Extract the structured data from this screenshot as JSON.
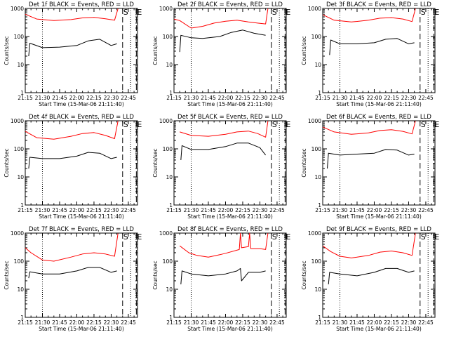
{
  "figure": {
    "background": "#ffffff",
    "panels_grid": "3x3"
  },
  "chart_data": [
    {
      "type": "line",
      "title": "Det 1f BLACK = Events, RED = LLD",
      "xlabel": "Start Time (15-Mar-06 21:11:40)",
      "ylabel": "Counts/sec",
      "xticks": [
        "21:15",
        "21:30",
        "21:45",
        "22:00",
        "22:15",
        "22:30",
        "22:45"
      ],
      "yticks": [
        "1",
        "10",
        "100",
        "1000"
      ],
      "yscale": "log",
      "ylim": [
        1,
        1000
      ],
      "xlim_min": [
        15,
        113
      ],
      "markers": [
        {
          "label": "",
          "t": 30,
          "style": "dotted"
        },
        {
          "label": "S",
          "t": 100,
          "style": "dashed"
        },
        {
          "label": "",
          "t": 107,
          "style": "dotted"
        },
        {
          "label": "E",
          "t": 112,
          "style": "dashed"
        }
      ],
      "series": [
        {
          "color": "#ff0000",
          "t": [
            15,
            25,
            40,
            55,
            65,
            75,
            85,
            93,
            96
          ],
          "values": [
            620,
            420,
            370,
            400,
            460,
            480,
            430,
            380,
            980
          ]
        },
        {
          "color": "#000000",
          "t": [
            18,
            19,
            30,
            45,
            60,
            70,
            80,
            90,
            95
          ],
          "values": [
            20,
            58,
            40,
            42,
            48,
            70,
            80,
            48,
            55
          ]
        }
      ]
    },
    {
      "type": "line",
      "title": "Det 2f BLACK = Events, RED = LLD",
      "xlabel": "Start Time (15-Mar-06 21:11:40)",
      "ylabel": "Counts/sec",
      "xticks": [
        "21:15",
        "21:30",
        "21:45",
        "22:00",
        "22:15",
        "22:30",
        "22:45"
      ],
      "yticks": [
        "1",
        "10",
        "100",
        "1000"
      ],
      "yscale": "log",
      "ylim": [
        1,
        1000
      ],
      "xlim_min": [
        15,
        113
      ],
      "markers": [
        {
          "label": "",
          "t": 30,
          "style": "dotted"
        },
        {
          "label": "S",
          "t": 100,
          "style": "dashed"
        },
        {
          "label": "",
          "t": 107,
          "style": "dotted"
        },
        {
          "label": "E",
          "t": 112,
          "style": "dashed"
        }
      ],
      "series": [
        {
          "color": "#ff0000",
          "t": [
            15,
            20,
            30,
            40,
            50,
            60,
            70,
            80,
            88,
            95,
            97
          ],
          "values": [
            420,
            370,
            200,
            230,
            300,
            350,
            380,
            330,
            300,
            280,
            990
          ]
        },
        {
          "color": "#000000",
          "t": [
            20,
            21,
            30,
            40,
            55,
            65,
            75,
            85,
            95
          ],
          "values": [
            28,
            110,
            90,
            85,
            100,
            140,
            170,
            130,
            110
          ]
        }
      ]
    },
    {
      "type": "line",
      "title": "Det 3f BLACK = Events, RED = LLD",
      "xlabel": "Start Time (15-Mar-06 21:11:40)",
      "ylabel": "Counts/sec",
      "xticks": [
        "21:15",
        "21:30",
        "21:45",
        "22:00",
        "22:15",
        "22:30",
        "22:45"
      ],
      "yticks": [
        "1",
        "10",
        "100",
        "1000"
      ],
      "yscale": "log",
      "ylim": [
        1,
        1000
      ],
      "xlim_min": [
        15,
        113
      ],
      "markers": [
        {
          "label": "",
          "t": 30,
          "style": "dotted"
        },
        {
          "label": "S",
          "t": 100,
          "style": "dashed"
        },
        {
          "label": "",
          "t": 107,
          "style": "dotted"
        },
        {
          "label": "E",
          "t": 112,
          "style": "dashed"
        }
      ],
      "series": [
        {
          "color": "#ff0000",
          "t": [
            15,
            25,
            40,
            55,
            65,
            75,
            85,
            93,
            96
          ],
          "values": [
            600,
            380,
            330,
            380,
            450,
            470,
            420,
            340,
            990
          ]
        },
        {
          "color": "#000000",
          "t": [
            21,
            22,
            30,
            45,
            60,
            70,
            80,
            90,
            95
          ],
          "values": [
            22,
            75,
            55,
            55,
            60,
            80,
            85,
            55,
            60
          ]
        }
      ]
    },
    {
      "type": "line",
      "title": "Det 4f BLACK = Events, RED = LLD",
      "xlabel": "Start Time (15-Mar-06 21:11:40)",
      "ylabel": "Counts/sec",
      "xticks": [
        "21:15",
        "21:30",
        "21:45",
        "22:00",
        "22:15",
        "22:30",
        "22:45"
      ],
      "yticks": [
        "1",
        "10",
        "100",
        "1000"
      ],
      "yscale": "log",
      "ylim": [
        1,
        1000
      ],
      "xlim_min": [
        15,
        113
      ],
      "markers": [
        {
          "label": "",
          "t": 30,
          "style": "dotted"
        },
        {
          "label": "S",
          "t": 100,
          "style": "dashed"
        },
        {
          "label": "",
          "t": 107,
          "style": "dotted"
        },
        {
          "label": "E",
          "t": 112,
          "style": "dashed"
        }
      ],
      "series": [
        {
          "color": "#ff0000",
          "t": [
            15,
            25,
            40,
            55,
            65,
            75,
            85,
            93,
            96
          ],
          "values": [
            420,
            250,
            220,
            280,
            350,
            380,
            300,
            230,
            980
          ]
        },
        {
          "color": "#000000",
          "t": [
            18,
            19,
            30,
            45,
            60,
            70,
            80,
            90,
            95
          ],
          "values": [
            20,
            50,
            45,
            45,
            55,
            75,
            70,
            45,
            50
          ]
        }
      ]
    },
    {
      "type": "line",
      "title": "Det 5f BLACK = Events, RED = LLD",
      "xlabel": "Start Time (15-Mar-06 21:11:40)",
      "ylabel": "Counts/sec",
      "xticks": [
        "21:15",
        "21:30",
        "21:45",
        "22:00",
        "22:15",
        "22:30",
        "22:45"
      ],
      "yticks": [
        "1",
        "10",
        "100",
        "1000"
      ],
      "yscale": "log",
      "ylim": [
        1,
        1000
      ],
      "xlim_min": [
        15,
        113
      ],
      "markers": [
        {
          "label": "",
          "t": 30,
          "style": "dotted"
        },
        {
          "label": "S",
          "t": 100,
          "style": "dashed"
        },
        {
          "label": "",
          "t": 107,
          "style": "dotted"
        },
        {
          "label": "E",
          "t": 112,
          "style": "dashed"
        }
      ],
      "series": [
        {
          "color": "#ff0000",
          "t": [
            20,
            30,
            45,
            60,
            70,
            80,
            88,
            95,
            97
          ],
          "values": [
            400,
            300,
            280,
            330,
            400,
            430,
            350,
            260,
            980
          ]
        },
        {
          "color": "#000000",
          "t": [
            21,
            22,
            30,
            45,
            60,
            70,
            80,
            90,
            95
          ],
          "values": [
            40,
            130,
            95,
            95,
            120,
            160,
            160,
            110,
            60
          ]
        }
      ]
    },
    {
      "type": "line",
      "title": "Det 6f BLACK = Events, RED = LLD",
      "xlabel": "Start Time (15-Mar-06 21:11:40)",
      "ylabel": "Counts/sec",
      "xticks": [
        "21:15",
        "21:30",
        "21:45",
        "22:00",
        "22:15",
        "22:30",
        "22:45"
      ],
      "yticks": [
        "1",
        "10",
        "100",
        "1000"
      ],
      "yscale": "log",
      "ylim": [
        1,
        1000
      ],
      "xlim_min": [
        15,
        113
      ],
      "markers": [
        {
          "label": "",
          "t": 30,
          "style": "dotted"
        },
        {
          "label": "S",
          "t": 100,
          "style": "dashed"
        },
        {
          "label": "",
          "t": 107,
          "style": "dotted"
        },
        {
          "label": "E",
          "t": 112,
          "style": "dashed"
        }
      ],
      "series": [
        {
          "color": "#ff0000",
          "t": [
            15,
            25,
            40,
            55,
            65,
            75,
            85,
            93,
            96
          ],
          "values": [
            600,
            400,
            330,
            370,
            450,
            480,
            420,
            340,
            990
          ]
        },
        {
          "color": "#000000",
          "t": [
            19,
            20,
            30,
            45,
            60,
            70,
            80,
            90,
            95
          ],
          "values": [
            20,
            70,
            60,
            65,
            70,
            95,
            90,
            60,
            65
          ]
        }
      ]
    },
    {
      "type": "line",
      "title": "Det 7f BLACK = Events, RED = LLD",
      "xlabel": "Start Time (15-Mar-06 21:11:40)",
      "ylabel": "Counts/sec",
      "xticks": [
        "21:15",
        "21:30",
        "21:45",
        "22:00",
        "22:15",
        "22:30",
        "22:45"
      ],
      "yticks": [
        "1",
        "10",
        "100",
        "1000"
      ],
      "yscale": "log",
      "ylim": [
        1,
        1000
      ],
      "xlim_min": [
        15,
        113
      ],
      "markers": [
        {
          "label": "",
          "t": 30,
          "style": "dotted"
        },
        {
          "label": "S",
          "t": 100,
          "style": "dashed"
        },
        {
          "label": "",
          "t": 107,
          "style": "dotted"
        },
        {
          "label": "E",
          "t": 112,
          "style": "dashed"
        }
      ],
      "series": [
        {
          "color": "#ff0000",
          "t": [
            15,
            20,
            30,
            40,
            55,
            65,
            75,
            85,
            93,
            96
          ],
          "values": [
            300,
            200,
            110,
            100,
            140,
            180,
            200,
            180,
            150,
            980
          ]
        },
        {
          "color": "#000000",
          "t": [
            18,
            19,
            30,
            45,
            60,
            70,
            80,
            90,
            95
          ],
          "values": [
            25,
            42,
            35,
            35,
            45,
            60,
            60,
            40,
            45
          ]
        }
      ]
    },
    {
      "type": "line",
      "title": "Det 8f BLACK = Events, RED = LLD",
      "xlabel": "Start Time (15-Mar-06 21:11:40)",
      "ylabel": "Counts/sec",
      "xticks": [
        "21:15",
        "21:30",
        "21:45",
        "22:00",
        "22:15",
        "22:30",
        "22:45"
      ],
      "yticks": [
        "1",
        "10",
        "100",
        "1000"
      ],
      "yscale": "log",
      "ylim": [
        1,
        1000
      ],
      "xlim_min": [
        15,
        113
      ],
      "markers": [
        {
          "label": "",
          "t": 30,
          "style": "dotted"
        },
        {
          "label": "S",
          "t": 100,
          "style": "dashed"
        },
        {
          "label": "",
          "t": 107,
          "style": "dotted"
        },
        {
          "label": "E",
          "t": 112,
          "style": "dashed"
        }
      ],
      "series": [
        {
          "color": "#ff0000",
          "t": [
            20,
            28,
            35,
            45,
            55,
            60,
            72,
            73,
            74,
            80,
            81,
            82,
            90,
            95,
            97
          ],
          "values": [
            350,
            200,
            160,
            140,
            170,
            190,
            260,
            990,
            300,
            330,
            990,
            280,
            280,
            260,
            990
          ]
        },
        {
          "color": "#000000",
          "t": [
            21,
            22,
            30,
            45,
            60,
            70,
            73,
            74,
            80,
            90,
            95
          ],
          "values": [
            15,
            45,
            35,
            30,
            35,
            45,
            55,
            20,
            40,
            40,
            45
          ]
        }
      ]
    },
    {
      "type": "line",
      "title": "Det 9f BLACK = Events, RED = LLD",
      "xlabel": "Start Time (15-Mar-06 21:11:40)",
      "ylabel": "Counts/sec",
      "xticks": [
        "21:15",
        "21:30",
        "21:45",
        "22:00",
        "22:15",
        "22:30",
        "22:45"
      ],
      "yticks": [
        "1",
        "10",
        "100",
        "1000"
      ],
      "yscale": "log",
      "ylim": [
        1,
        1000
      ],
      "xlim_min": [
        15,
        113
      ],
      "markers": [
        {
          "label": "",
          "t": 30,
          "style": "dotted"
        },
        {
          "label": "S",
          "t": 100,
          "style": "dashed"
        },
        {
          "label": "",
          "t": 107,
          "style": "dotted"
        },
        {
          "label": "E",
          "t": 112,
          "style": "dashed"
        }
      ],
      "series": [
        {
          "color": "#ff0000",
          "t": [
            15,
            22,
            30,
            40,
            55,
            65,
            75,
            85,
            93,
            96
          ],
          "values": [
            350,
            220,
            150,
            130,
            160,
            210,
            230,
            200,
            160,
            990
          ]
        },
        {
          "color": "#000000",
          "t": [
            20,
            21,
            30,
            45,
            60,
            70,
            80,
            90,
            95
          ],
          "values": [
            15,
            40,
            35,
            30,
            40,
            55,
            55,
            40,
            45
          ]
        }
      ]
    }
  ]
}
